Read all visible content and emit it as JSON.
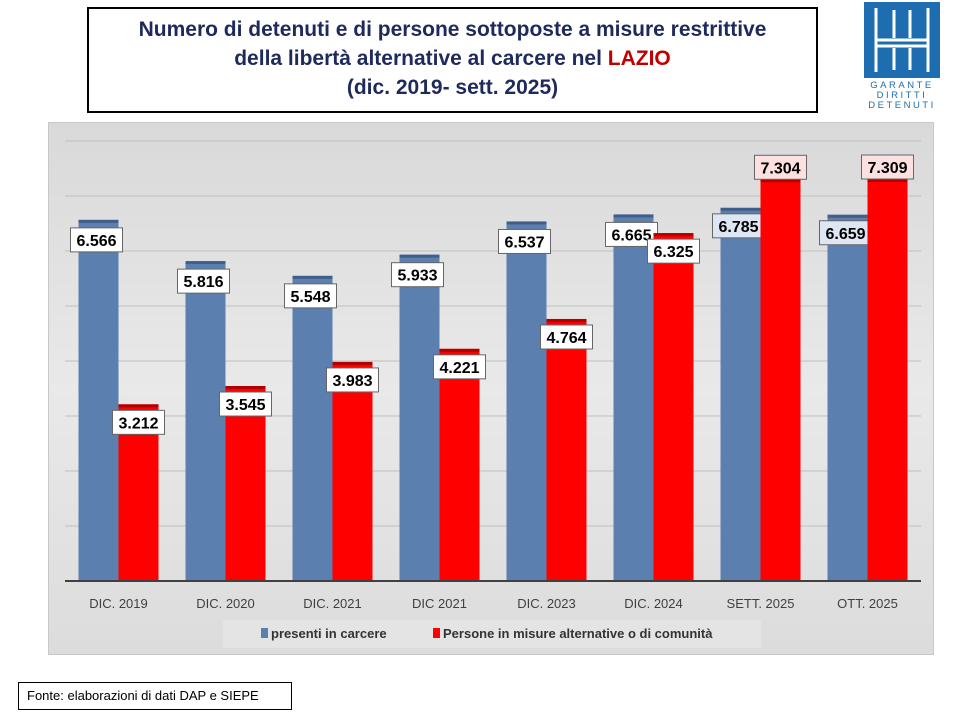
{
  "title": {
    "line1": "Numero di detenuti e di persone sottoposte a misure restrittive",
    "line2_pre": "della libertà alternative al carcere nel ",
    "line2_hl": "LAZIO",
    "line3": "(dic. 2019- sett. 2025)"
  },
  "logo": {
    "text": [
      "GARANTE",
      "DIRITTI",
      "DETENUTI"
    ],
    "color": "#1e6db0"
  },
  "source": "Fonte: elaborazioni di dati DAP e SIEPE",
  "chart_data": {
    "type": "bar",
    "categories": [
      "DIC. 2019",
      "DIC. 2020",
      "DIC. 2021",
      "DIC 2021",
      "DIC. 2023",
      "DIC. 2024",
      "SETT. 2025",
      "OTT. 2025"
    ],
    "series": [
      {
        "name": "presenti in carcere",
        "color": "#5b80b0",
        "values": [
          6566,
          5816,
          5548,
          5933,
          6537,
          6665,
          6785,
          6659
        ],
        "labels": [
          "6.566",
          "5.816",
          "5.548",
          "5.933",
          "6.537",
          "6.665",
          "6.785",
          "6.659"
        ]
      },
      {
        "name": "Persone in misure alternative o di comunità",
        "color": "#ff0000",
        "values": [
          3212,
          3545,
          3983,
          4221,
          4764,
          6325,
          7304,
          7309
        ],
        "labels": [
          "3.212",
          "3.545",
          "3.983",
          "4.221",
          "4.764",
          "6.325",
          "7.304",
          "7.309"
        ]
      }
    ],
    "ylim": [
      0,
      8000
    ],
    "grid": true,
    "legend": "bottom"
  }
}
